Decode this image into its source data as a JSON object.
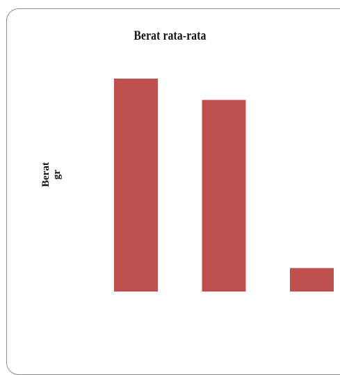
{
  "chart_data": {
    "type": "bar",
    "title": "Berat rata-rata",
    "ylabel": "Berat\ngr",
    "xlabel": "",
    "categories": [
      "",
      "",
      ""
    ],
    "values": [
      100,
      90,
      11
    ],
    "ylim": [
      0,
      100
    ],
    "grid": false,
    "legend": "none",
    "bar_color": "#c0504d"
  }
}
